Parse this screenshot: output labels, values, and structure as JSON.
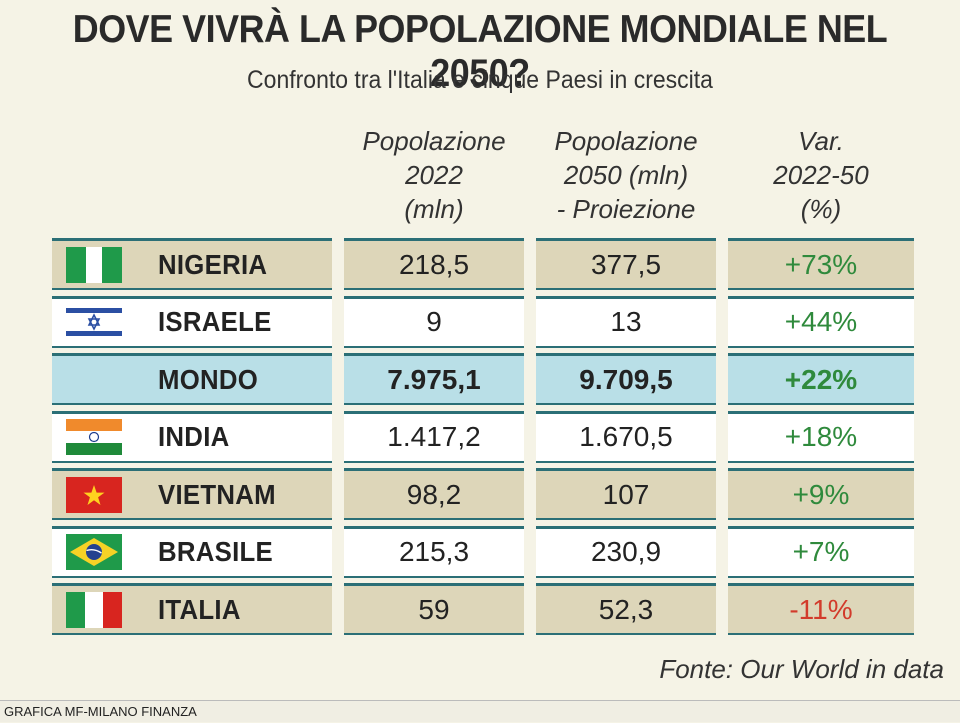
{
  "title": "DOVE VIVRÀ LA POPOLAZIONE MONDIALE NEL 2050?",
  "subtitle": "Confronto tra l'Italia e cinque Paesi in crescita",
  "columns": {
    "pop2022": "Popolazione\n2022\n(mln)",
    "pop2050": "Popolazione\n2050 (mln)\n- Proiezione",
    "var": "Var.\n2022-50\n(%)"
  },
  "source": "Fonte: Our World in data",
  "credit": "GRAFICA MF-MILANO FINANZA",
  "colors": {
    "border": "#2b6f76",
    "tan": "#ddd6b9",
    "world": "#b9dfe7",
    "positive": "#2f8a3c",
    "negative": "#d23b2b"
  },
  "chart_data": {
    "type": "table",
    "columns": [
      "Popolazione 2022 (mln)",
      "Popolazione 2050 (mln) - Proiezione",
      "Var. 2022-50 (%)"
    ],
    "rows": [
      {
        "country": "NIGERIA",
        "flag": "nigeria-flag",
        "pop2022": "218,5",
        "pop2050": "377,5",
        "var": "+73%",
        "style": "tan"
      },
      {
        "country": "ISRAELE",
        "flag": "israel-flag",
        "pop2022": "9",
        "pop2050": "13",
        "var": "+44%",
        "style": "white"
      },
      {
        "country": "MONDO",
        "flag": "",
        "pop2022": "7.975,1",
        "pop2050": "9.709,5",
        "var": "+22%",
        "style": "world"
      },
      {
        "country": "INDIA",
        "flag": "india-flag",
        "pop2022": "1.417,2",
        "pop2050": "1.670,5",
        "var": "+18%",
        "style": "white"
      },
      {
        "country": "VIETNAM",
        "flag": "vietnam-flag",
        "pop2022": "98,2",
        "pop2050": "107",
        "var": "+9%",
        "style": "tan"
      },
      {
        "country": "BRASILE",
        "flag": "brazil-flag",
        "pop2022": "215,3",
        "pop2050": "230,9",
        "var": "+7%",
        "style": "white"
      },
      {
        "country": "ITALIA",
        "flag": "italy-flag",
        "pop2022": "59",
        "pop2050": "52,3",
        "var": "-11%",
        "style": "tan"
      }
    ]
  }
}
